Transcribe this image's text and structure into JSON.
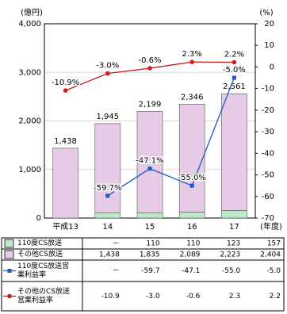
{
  "chart_data": {
    "type": "bar",
    "y_unit": "(億円)",
    "y2_unit": "(%)",
    "x_unit": "(年度)",
    "categories": [
      "平成13",
      "14",
      "15",
      "16",
      "17"
    ],
    "ylim": [
      0,
      4000
    ],
    "yticks": [
      0,
      {
        "value": 1000,
        "label": "1,000"
      },
      {
        "value": 2000,
        "label": "2,000"
      },
      {
        "value": 3000,
        "label": "3,000"
      },
      {
        "value": 4000,
        "label": "4,000"
      }
    ],
    "y2lim": [
      -70,
      20
    ],
    "y2ticks": [
      -70,
      -60,
      -50,
      -40,
      -30,
      -20,
      -10,
      0,
      10,
      20
    ],
    "grid": true,
    "totals": {
      "values": [
        1438,
        1945,
        2199,
        2346,
        2561
      ],
      "value_labels": [
        "1,438",
        "1,945",
        "2,199",
        "2,346",
        "2,561"
      ]
    },
    "series": [
      {
        "name": "110度CS放送",
        "type": "bar",
        "color": "#bfe8c8",
        "values": [
          null,
          110,
          110,
          123,
          157
        ],
        "table_labels": [
          "－",
          "110",
          "110",
          "123",
          "157"
        ]
      },
      {
        "name": "その他CS放送",
        "type": "bar",
        "color": "#e6cae6",
        "values": [
          1438,
          1835,
          2089,
          2223,
          2404
        ],
        "table_labels": [
          "1,438",
          "1,835",
          "2,089",
          "2,223",
          "2,404"
        ]
      },
      {
        "name": "110度CS放送営業利益率",
        "type": "line",
        "axis": "y2",
        "marker": "square",
        "color": "#1f58c0",
        "values": [
          null,
          -59.7,
          -47.1,
          -55.0,
          -5.0
        ],
        "value_labels": [
          null,
          "-59.7%",
          "-47.1%",
          "-55.0%",
          "-5.0%"
        ],
        "table_labels": [
          "－",
          "-59.7",
          "-47.1",
          "-55.0",
          "-5.0"
        ]
      },
      {
        "name": "その他のCS放送営業利益率",
        "type": "line",
        "axis": "y2",
        "marker": "circle",
        "color": "#d01c1c",
        "values": [
          -10.9,
          -3.0,
          -0.6,
          2.3,
          2.2
        ],
        "value_labels": [
          "-10.9%",
          "-3.0%",
          "-0.6%",
          "2.3%",
          "2.2%"
        ],
        "table_labels": [
          "-10.9",
          "-3.0",
          "-0.6",
          "2.3",
          "2.2"
        ]
      }
    ]
  }
}
